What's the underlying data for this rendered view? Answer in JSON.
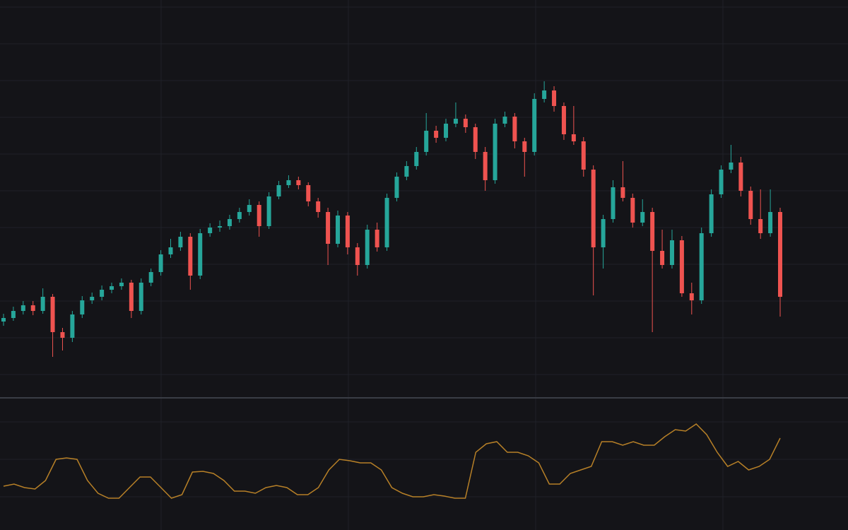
{
  "chart_data": [
    {
      "type": "candlestick",
      "up_color": "#26a69a",
      "down_color": "#ef5350",
      "grid": true,
      "ylim": [
        40,
        600
      ],
      "yticks": [
        70,
        122,
        174,
        226,
        278,
        330,
        382,
        434,
        486,
        538,
        590
      ],
      "open": [
        145,
        150,
        160,
        168,
        160,
        180,
        130,
        122,
        155,
        175,
        180,
        190,
        195,
        200,
        160,
        200,
        215,
        240,
        250,
        265,
        210,
        270,
        278,
        280,
        290,
        300,
        310,
        280,
        322,
        338,
        345,
        338,
        315,
        300,
        255,
        295,
        250,
        225,
        275,
        250,
        320,
        350,
        365,
        385,
        415,
        405,
        425,
        432,
        420,
        385,
        345,
        425,
        435,
        400,
        385,
        460,
        472,
        450,
        410,
        400,
        360,
        250,
        290,
        335,
        320,
        285,
        300,
        245,
        225,
        260,
        185,
        175,
        270,
        325,
        360,
        370,
        330,
        290,
        270,
        300
      ],
      "high": [
        156,
        166,
        174,
        174,
        192,
        184,
        136,
        160,
        181,
        186,
        196,
        200,
        206,
        204,
        206,
        220,
        246,
        262,
        272,
        270,
        276,
        284,
        288,
        296,
        306,
        318,
        315,
        328,
        344,
        352,
        350,
        342,
        320,
        306,
        302,
        300,
        256,
        282,
        285,
        326,
        356,
        372,
        392,
        440,
        422,
        432,
        455,
        438,
        425,
        392,
        432,
        442,
        440,
        405,
        468,
        485,
        478,
        455,
        450,
        406,
        366,
        296,
        345,
        372,
        326,
        318,
        306,
        275,
        275,
        266,
        200,
        278,
        332,
        366,
        395,
        378,
        336,
        332,
        332,
        306
      ],
      "low": [
        139,
        146,
        155,
        154,
        156,
        95,
        104,
        116,
        150,
        170,
        175,
        185,
        190,
        150,
        155,
        195,
        210,
        235,
        245,
        190,
        205,
        265,
        272,
        275,
        285,
        295,
        265,
        276,
        318,
        334,
        332,
        308,
        292,
        225,
        250,
        240,
        210,
        220,
        244,
        245,
        315,
        345,
        360,
        380,
        398,
        400,
        420,
        412,
        375,
        330,
        340,
        420,
        390,
        350,
        380,
        455,
        442,
        402,
        395,
        350,
        182,
        220,
        285,
        315,
        278,
        280,
        130,
        220,
        220,
        180,
        155,
        170,
        265,
        320,
        355,
        322,
        282,
        262,
        265,
        152
      ],
      "close": [
        150,
        160,
        168,
        160,
        180,
        130,
        122,
        155,
        175,
        180,
        190,
        195,
        200,
        160,
        200,
        215,
        240,
        250,
        265,
        210,
        270,
        278,
        280,
        290,
        300,
        310,
        280,
        322,
        338,
        345,
        338,
        315,
        300,
        255,
        295,
        250,
        225,
        275,
        250,
        320,
        350,
        365,
        385,
        415,
        405,
        425,
        432,
        420,
        385,
        345,
        425,
        435,
        400,
        385,
        460,
        472,
        450,
        410,
        400,
        360,
        250,
        290,
        335,
        320,
        285,
        300,
        245,
        225,
        260,
        185,
        175,
        270,
        325,
        360,
        370,
        330,
        290,
        270,
        300,
        180
      ]
    },
    {
      "type": "area",
      "color": "#d4932a",
      "grid": true,
      "ylim": [
        0,
        187
      ],
      "yticks": [
        47,
        100,
        153
      ],
      "values": [
        62,
        65,
        60,
        58,
        70,
        100,
        102,
        100,
        70,
        52,
        45,
        45,
        60,
        75,
        75,
        60,
        45,
        50,
        82,
        83,
        80,
        70,
        55,
        55,
        52,
        60,
        63,
        60,
        50,
        50,
        60,
        85,
        100,
        98,
        95,
        95,
        85,
        60,
        52,
        47,
        47,
        50,
        48,
        45,
        45,
        110,
        122,
        125,
        110,
        110,
        105,
        95,
        65,
        65,
        80,
        85,
        90,
        125,
        125,
        120,
        125,
        120,
        120,
        132,
        142,
        140,
        150,
        135,
        110,
        90,
        97,
        85,
        90,
        100,
        130
      ]
    }
  ]
}
